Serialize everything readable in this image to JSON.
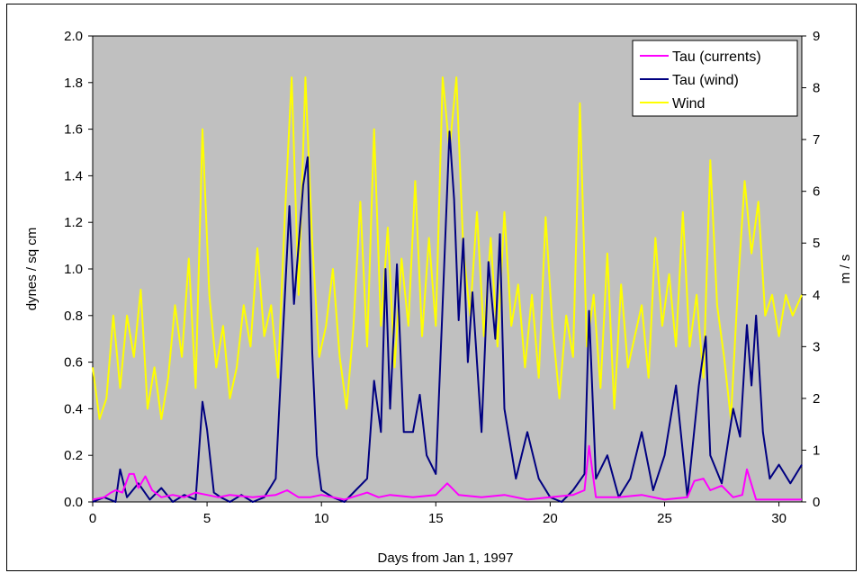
{
  "chart_data": {
    "type": "line",
    "title": "",
    "xlabel": "Days from Jan 1, 1997",
    "ylabel_left": "dynes / sq cm",
    "ylabel_right": "m / s",
    "xlim": [
      0,
      31
    ],
    "ylim_left": [
      0,
      2.0
    ],
    "ylim_right": [
      0,
      9
    ],
    "x_ticks": [
      "0",
      "5",
      "10",
      "15",
      "20",
      "25",
      "30"
    ],
    "y_ticks_left": [
      "0.0",
      "0.2",
      "0.4",
      "0.6",
      "0.8",
      "1.0",
      "1.2",
      "1.4",
      "1.6",
      "1.8",
      "2.0"
    ],
    "y_ticks_right": [
      "0",
      "1",
      "2",
      "3",
      "4",
      "5",
      "6",
      "7",
      "8",
      "9"
    ],
    "grid": false,
    "plot_background": "#c0c0c0",
    "legend_position": "top-right",
    "series": [
      {
        "name": "Tau (currents)",
        "color": "#ff00ff",
        "axis": "left",
        "x": [
          0,
          0.5,
          0.8,
          1.0,
          1.3,
          1.6,
          1.8,
          2.0,
          2.3,
          2.6,
          3.0,
          3.5,
          4.0,
          4.5,
          5.0,
          5.5,
          6.0,
          7.0,
          8.0,
          8.5,
          9.0,
          9.5,
          10.0,
          11.0,
          12.0,
          12.5,
          13.0,
          14.0,
          15.0,
          15.5,
          16.0,
          17.0,
          18.0,
          19.0,
          20.0,
          21.0,
          21.5,
          21.7,
          22.0,
          23.0,
          24.0,
          25.0,
          26.0,
          26.3,
          26.7,
          27.0,
          27.5,
          28.0,
          28.4,
          28.6,
          29.0,
          30.0,
          31.0
        ],
        "y": [
          0.01,
          0.02,
          0.04,
          0.05,
          0.04,
          0.12,
          0.12,
          0.06,
          0.11,
          0.05,
          0.02,
          0.03,
          0.02,
          0.04,
          0.03,
          0.02,
          0.03,
          0.02,
          0.03,
          0.05,
          0.02,
          0.02,
          0.03,
          0.01,
          0.04,
          0.02,
          0.03,
          0.02,
          0.03,
          0.08,
          0.03,
          0.02,
          0.03,
          0.01,
          0.02,
          0.03,
          0.05,
          0.24,
          0.02,
          0.02,
          0.03,
          0.01,
          0.02,
          0.09,
          0.1,
          0.05,
          0.07,
          0.02,
          0.03,
          0.14,
          0.01,
          0.01,
          0.01
        ]
      },
      {
        "name": "Tau (wind)",
        "color": "#000080",
        "axis": "left",
        "x": [
          0,
          0.5,
          1.0,
          1.2,
          1.5,
          2.0,
          2.5,
          3.0,
          3.5,
          4.0,
          4.5,
          4.8,
          5.0,
          5.3,
          5.6,
          6.0,
          6.5,
          7.0,
          7.5,
          8.0,
          8.3,
          8.6,
          8.8,
          9.0,
          9.2,
          9.4,
          9.6,
          9.8,
          10.0,
          10.5,
          11.0,
          11.5,
          12.0,
          12.3,
          12.6,
          12.8,
          13.0,
          13.3,
          13.6,
          14.0,
          14.3,
          14.6,
          15.0,
          15.3,
          15.6,
          15.8,
          16.0,
          16.2,
          16.4,
          16.6,
          17.0,
          17.3,
          17.6,
          17.8,
          18.0,
          18.5,
          19.0,
          19.5,
          20.0,
          20.5,
          21.0,
          21.5,
          21.7,
          22.0,
          22.5,
          23.0,
          23.5,
          24.0,
          24.5,
          25.0,
          25.5,
          26.0,
          26.5,
          26.8,
          27.0,
          27.5,
          28.0,
          28.3,
          28.6,
          28.8,
          29.0,
          29.3,
          29.6,
          30.0,
          30.5,
          31.0
        ],
        "y": [
          0.0,
          0.02,
          0.0,
          0.14,
          0.02,
          0.08,
          0.01,
          0.06,
          0.0,
          0.03,
          0.01,
          0.43,
          0.31,
          0.04,
          0.02,
          0.0,
          0.03,
          0.0,
          0.02,
          0.1,
          0.69,
          1.27,
          0.85,
          1.1,
          1.36,
          1.48,
          0.64,
          0.2,
          0.05,
          0.02,
          0.0,
          0.05,
          0.1,
          0.52,
          0.3,
          1.0,
          0.4,
          1.02,
          0.3,
          0.3,
          0.46,
          0.2,
          0.12,
          0.85,
          1.59,
          1.3,
          0.78,
          1.13,
          0.6,
          0.9,
          0.3,
          1.03,
          0.7,
          1.15,
          0.4,
          0.1,
          0.3,
          0.1,
          0.02,
          0.0,
          0.05,
          0.12,
          0.82,
          0.1,
          0.2,
          0.02,
          0.1,
          0.3,
          0.05,
          0.2,
          0.5,
          0.02,
          0.5,
          0.71,
          0.2,
          0.08,
          0.4,
          0.28,
          0.76,
          0.5,
          0.8,
          0.3,
          0.1,
          0.16,
          0.08,
          0.16
        ]
      },
      {
        "name": "Wind",
        "color": "#ffff00",
        "axis": "right",
        "x": [
          0,
          0.3,
          0.6,
          0.9,
          1.2,
          1.5,
          1.8,
          2.1,
          2.4,
          2.7,
          3.0,
          3.3,
          3.6,
          3.9,
          4.2,
          4.5,
          4.8,
          5.1,
          5.4,
          5.7,
          6.0,
          6.3,
          6.6,
          6.9,
          7.2,
          7.5,
          7.8,
          8.1,
          8.4,
          8.7,
          9.0,
          9.3,
          9.6,
          9.9,
          10.2,
          10.5,
          10.8,
          11.1,
          11.4,
          11.7,
          12.0,
          12.3,
          12.6,
          12.9,
          13.2,
          13.5,
          13.8,
          14.1,
          14.4,
          14.7,
          15.0,
          15.3,
          15.6,
          15.9,
          16.2,
          16.5,
          16.8,
          17.1,
          17.4,
          17.7,
          18.0,
          18.3,
          18.6,
          18.9,
          19.2,
          19.5,
          19.8,
          20.1,
          20.4,
          20.7,
          21.0,
          21.3,
          21.6,
          21.9,
          22.2,
          22.5,
          22.8,
          23.1,
          23.4,
          23.7,
          24.0,
          24.3,
          24.6,
          24.9,
          25.2,
          25.5,
          25.8,
          26.1,
          26.4,
          26.7,
          27.0,
          27.3,
          27.6,
          27.9,
          28.2,
          28.5,
          28.8,
          29.1,
          29.4,
          29.7,
          30.0,
          30.3,
          30.6,
          31.0
        ],
        "y": [
          2.6,
          1.6,
          2.0,
          3.6,
          2.2,
          3.6,
          2.8,
          4.1,
          1.8,
          2.6,
          1.6,
          2.4,
          3.8,
          2.8,
          4.7,
          2.2,
          7.2,
          4.0,
          2.6,
          3.4,
          2.0,
          2.6,
          3.8,
          3.0,
          4.9,
          3.2,
          3.8,
          2.4,
          5.5,
          8.2,
          4.0,
          8.2,
          5.0,
          2.8,
          3.4,
          4.5,
          2.8,
          1.8,
          3.4,
          5.8,
          3.0,
          7.2,
          3.4,
          5.3,
          2.6,
          4.7,
          3.4,
          6.2,
          3.2,
          5.1,
          3.4,
          8.2,
          6.8,
          8.2,
          4.9,
          3.6,
          5.6,
          3.2,
          5.1,
          3.0,
          5.6,
          3.4,
          4.2,
          2.6,
          4.0,
          2.4,
          5.5,
          3.4,
          2.0,
          3.6,
          2.8,
          7.7,
          3.0,
          4.0,
          2.2,
          4.8,
          1.8,
          4.2,
          2.6,
          3.2,
          3.8,
          2.4,
          5.1,
          3.4,
          4.4,
          3.0,
          5.6,
          3.0,
          4.0,
          2.4,
          6.6,
          3.8,
          2.8,
          1.6,
          4.1,
          6.2,
          4.8,
          5.8,
          3.6,
          4.0,
          3.2,
          4.0,
          3.6,
          4.0
        ]
      }
    ]
  }
}
